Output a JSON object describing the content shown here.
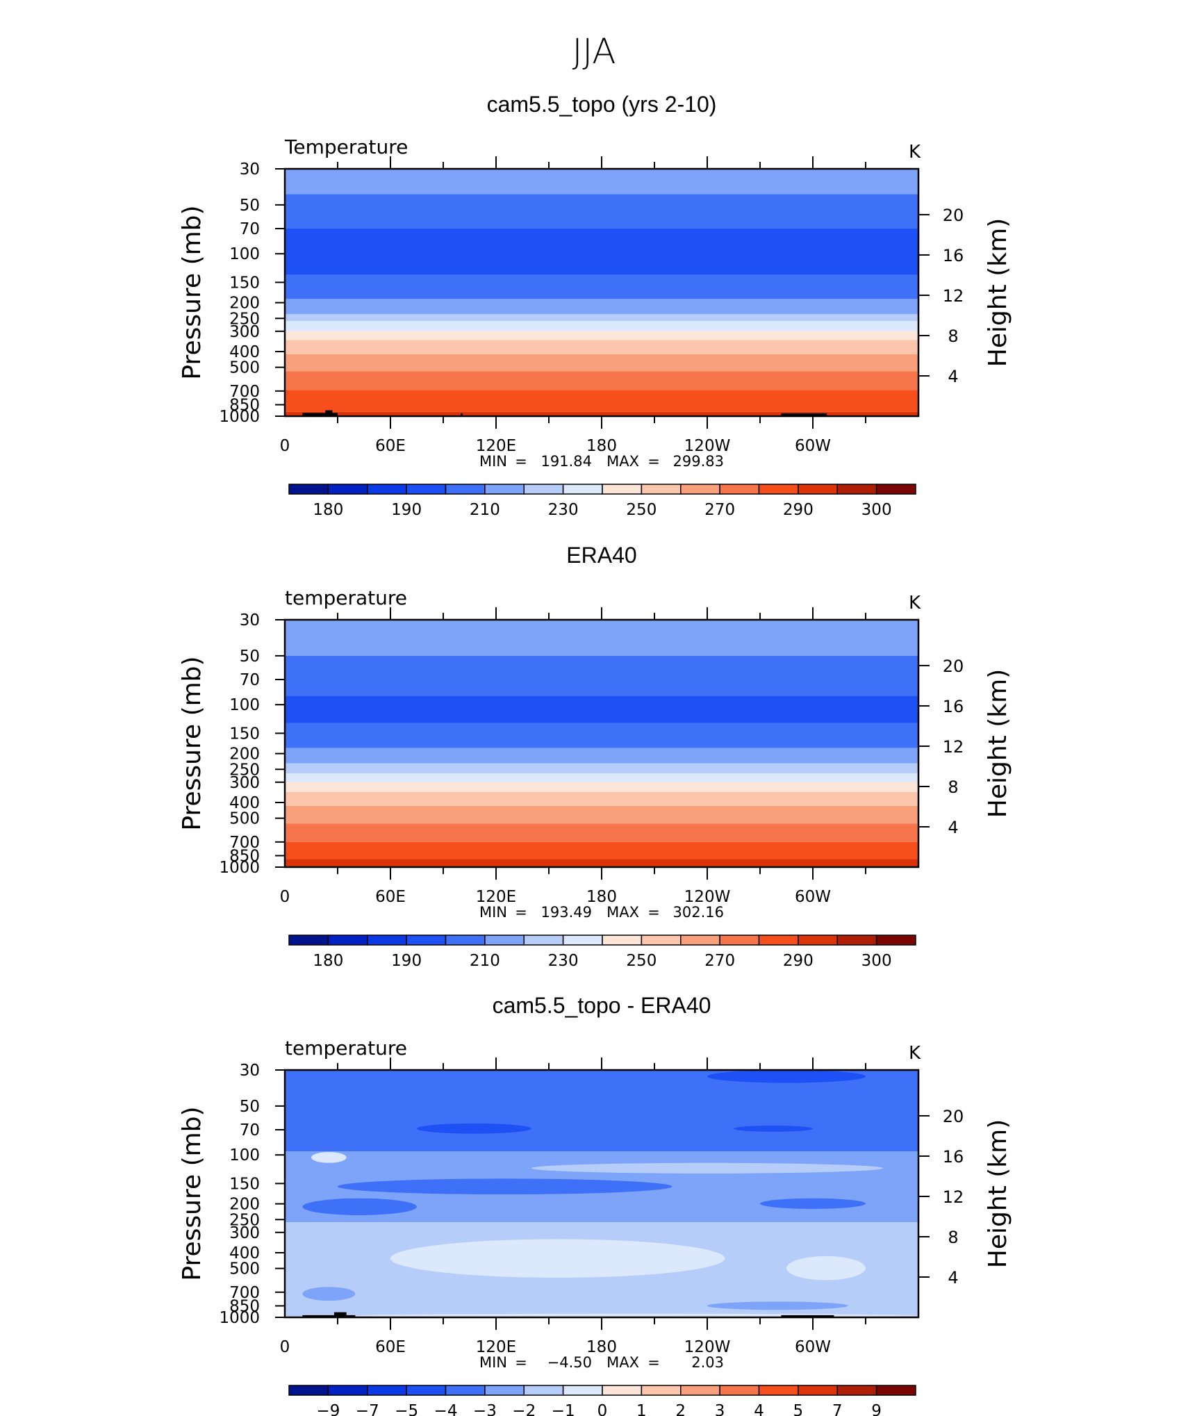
{
  "figure": {
    "title": "JJA"
  },
  "chart_data": [
    {
      "type": "heatmap",
      "title": "cam5.5_topo (yrs 2-10)",
      "left_label": "Temperature",
      "units": "K",
      "ylabel": "Pressure (mb)",
      "y2label": "Height (km)",
      "x_ticks": [
        "0",
        "60E",
        "120E",
        "180",
        "120W",
        "60W"
      ],
      "x_tick_lon": [
        0,
        60,
        120,
        180,
        240,
        300
      ],
      "xlim": [
        0,
        360
      ],
      "y_ticks": [
        "30",
        "50",
        "70",
        "100",
        "150",
        "200",
        "250",
        "300",
        "400",
        "500",
        "700",
        "850",
        "1000"
      ],
      "y_tick_values": [
        30,
        50,
        70,
        100,
        150,
        200,
        250,
        300,
        400,
        500,
        700,
        850,
        1000
      ],
      "ylim": [
        30,
        1000
      ],
      "y_scale": "log",
      "y2_ticks": [
        "20",
        "16",
        "12",
        "8",
        "4"
      ],
      "y2_tick_values": [
        20,
        16,
        12,
        8,
        4
      ],
      "stats": {
        "min_label": "MIN",
        "min": "191.84",
        "max_label": "MAX",
        "max": "299.83"
      },
      "legend": {
        "labels": [
          "180",
          "190",
          "210",
          "230",
          "250",
          "270",
          "290",
          "300"
        ],
        "colors": [
          "#00138F",
          "#0022C4",
          "#0A3AE6",
          "#1D50F5",
          "#3E70F8",
          "#7EA4F9",
          "#B7CDF9",
          "#DCE8FB",
          "#FDE6D8",
          "#FBC6AB",
          "#F89F7C",
          "#F7754A",
          "#F74F1C",
          "#DC3408",
          "#AE1E04",
          "#7A0501"
        ]
      },
      "field_bands": [
        {
          "p": [
            30,
            43
          ],
          "color": "#7EA4F9"
        },
        {
          "p": [
            43,
            70
          ],
          "color": "#3E70F8"
        },
        {
          "p": [
            70,
            135
          ],
          "color": "#1D50F5"
        },
        {
          "p": [
            135,
            190
          ],
          "color": "#3E70F8"
        },
        {
          "p": [
            190,
            235
          ],
          "color": "#7EA4F9"
        },
        {
          "p": [
            235,
            260
          ],
          "color": "#B7CDF9"
        },
        {
          "p": [
            260,
            300
          ],
          "color": "#DCE8FB"
        },
        {
          "p": [
            300,
            340
          ],
          "color": "#FDE6D8"
        },
        {
          "p": [
            340,
            415
          ],
          "color": "#FBC6AB"
        },
        {
          "p": [
            415,
            530
          ],
          "color": "#F89F7C"
        },
        {
          "p": [
            530,
            690
          ],
          "color": "#F7754A"
        },
        {
          "p": [
            690,
            940
          ],
          "color": "#F74F1C"
        },
        {
          "p": [
            940,
            1000
          ],
          "color": "#DC3408"
        }
      ],
      "topography": [
        {
          "lon": [
            10,
            30
          ],
          "p": [
            955,
            1000
          ]
        },
        {
          "lon": [
            23,
            27
          ],
          "p": [
            920,
            1000
          ]
        },
        {
          "lon": [
            100,
            101
          ],
          "p": [
            960,
            1000
          ]
        },
        {
          "lon": [
            282,
            308
          ],
          "p": [
            960,
            1000
          ]
        }
      ]
    },
    {
      "type": "heatmap",
      "title": "ERA40",
      "left_label": "temperature",
      "units": "K",
      "ylabel": "Pressure (mb)",
      "y2label": "Height (km)",
      "x_ticks": [
        "0",
        "60E",
        "120E",
        "180",
        "120W",
        "60W"
      ],
      "x_tick_lon": [
        0,
        60,
        120,
        180,
        240,
        300
      ],
      "xlim": [
        0,
        360
      ],
      "y_ticks": [
        "30",
        "50",
        "70",
        "100",
        "150",
        "200",
        "250",
        "300",
        "400",
        "500",
        "700",
        "850",
        "1000"
      ],
      "y_tick_values": [
        30,
        50,
        70,
        100,
        150,
        200,
        250,
        300,
        400,
        500,
        700,
        850,
        1000
      ],
      "ylim": [
        30,
        1000
      ],
      "y_scale": "log",
      "y2_ticks": [
        "20",
        "16",
        "12",
        "8",
        "4"
      ],
      "y2_tick_values": [
        20,
        16,
        12,
        8,
        4
      ],
      "stats": {
        "min_label": "MIN",
        "min": "193.49",
        "max_label": "MAX",
        "max": "302.16"
      },
      "legend": {
        "labels": [
          "180",
          "190",
          "210",
          "230",
          "250",
          "270",
          "290",
          "300"
        ],
        "colors": [
          "#00138F",
          "#0022C4",
          "#0A3AE6",
          "#1D50F5",
          "#3E70F8",
          "#7EA4F9",
          "#B7CDF9",
          "#DCE8FB",
          "#FDE6D8",
          "#FBC6AB",
          "#F89F7C",
          "#F7754A",
          "#F74F1C",
          "#DC3408",
          "#AE1E04",
          "#7A0501"
        ]
      },
      "field_bands": [
        {
          "p": [
            30,
            50
          ],
          "color": "#7EA4F9"
        },
        {
          "p": [
            50,
            88
          ],
          "color": "#3E70F8"
        },
        {
          "p": [
            88,
            130
          ],
          "color": "#1D50F5"
        },
        {
          "p": [
            130,
            185
          ],
          "color": "#3E70F8"
        },
        {
          "p": [
            185,
            230
          ],
          "color": "#7EA4F9"
        },
        {
          "p": [
            230,
            265
          ],
          "color": "#B7CDF9"
        },
        {
          "p": [
            265,
            300
          ],
          "color": "#DCE8FB"
        },
        {
          "p": [
            300,
            345
          ],
          "color": "#FDE6D8"
        },
        {
          "p": [
            345,
            420
          ],
          "color": "#FBC6AB"
        },
        {
          "p": [
            420,
            540
          ],
          "color": "#F89F7C"
        },
        {
          "p": [
            540,
            700
          ],
          "color": "#F7754A"
        },
        {
          "p": [
            700,
            890
          ],
          "color": "#F74F1C"
        },
        {
          "p": [
            890,
            1000
          ],
          "color": "#DC3408"
        }
      ],
      "topography": []
    },
    {
      "type": "heatmap",
      "title": "cam5.5_topo - ERA40",
      "left_label": "temperature",
      "units": "K",
      "ylabel": "Pressure (mb)",
      "y2label": "Height (km)",
      "x_ticks": [
        "0",
        "60E",
        "120E",
        "180",
        "120W",
        "60W"
      ],
      "x_tick_lon": [
        0,
        60,
        120,
        180,
        240,
        300
      ],
      "xlim": [
        0,
        360
      ],
      "y_ticks": [
        "30",
        "50",
        "70",
        "100",
        "150",
        "200",
        "250",
        "300",
        "400",
        "500",
        "700",
        "850",
        "1000"
      ],
      "y_tick_values": [
        30,
        50,
        70,
        100,
        150,
        200,
        250,
        300,
        400,
        500,
        700,
        850,
        1000
      ],
      "ylim": [
        30,
        1000
      ],
      "y_scale": "log",
      "y2_ticks": [
        "20",
        "16",
        "12",
        "8",
        "4"
      ],
      "y2_tick_values": [
        20,
        16,
        12,
        8,
        4
      ],
      "stats": {
        "min_label": "MIN",
        "min": "−4.50",
        "max_label": "MAX",
        "max": "2.03"
      },
      "legend": {
        "labels": [
          "−9",
          "−7",
          "−5",
          "−4",
          "−3",
          "−2",
          "−1",
          "0",
          "1",
          "2",
          "3",
          "4",
          "5",
          "7",
          "9"
        ],
        "colors": [
          "#00138F",
          "#0022C4",
          "#0A3AE6",
          "#1D50F5",
          "#3E70F8",
          "#7EA4F9",
          "#B7CDF9",
          "#DCE8FB",
          "#FDE6D8",
          "#FBC6AB",
          "#F89F7C",
          "#F7754A",
          "#F74F1C",
          "#DC3408",
          "#AE1E04",
          "#7A0501"
        ]
      },
      "field_bands": [
        {
          "p": [
            30,
            95
          ],
          "color": "#3E70F8"
        },
        {
          "p": [
            95,
            260
          ],
          "color": "#7EA4F9"
        },
        {
          "p": [
            260,
            1000
          ],
          "color": "#B7CDF9"
        }
      ],
      "field_patches": [
        {
          "lon": [
            240,
            330
          ],
          "p": [
            30,
            36
          ],
          "color": "#1D50F5"
        },
        {
          "lon": [
            75,
            140
          ],
          "p": [
            64,
            74
          ],
          "color": "#1D50F5"
        },
        {
          "lon": [
            255,
            300
          ],
          "p": [
            66,
            72
          ],
          "color": "#1D50F5"
        },
        {
          "lon": [
            15,
            35
          ],
          "p": [
            96,
            112
          ],
          "color": "#DCE8FB"
        },
        {
          "lon": [
            140,
            340
          ],
          "p": [
            112,
            130
          ],
          "color": "#B7CDF9"
        },
        {
          "lon": [
            30,
            220
          ],
          "p": [
            140,
            175
          ],
          "color": "#3E70F8"
        },
        {
          "lon": [
            10,
            75
          ],
          "p": [
            185,
            235
          ],
          "color": "#3E70F8"
        },
        {
          "lon": [
            270,
            330
          ],
          "p": [
            185,
            215
          ],
          "color": "#3E70F8"
        },
        {
          "lon": [
            60,
            250
          ],
          "p": [
            330,
            570
          ],
          "color": "#DCE8FB"
        },
        {
          "lon": [
            285,
            330
          ],
          "p": [
            420,
            590
          ],
          "color": "#DCE8FB"
        },
        {
          "lon": [
            10,
            40
          ],
          "p": [
            650,
            790
          ],
          "color": "#7EA4F9"
        },
        {
          "lon": [
            240,
            320
          ],
          "p": [
            800,
            900
          ],
          "color": "#7EA4F9"
        },
        {
          "lon": [
            40,
            360
          ],
          "p": [
            950,
            1000
          ],
          "color": "#DCE8FB"
        }
      ],
      "topography": [
        {
          "lon": [
            10,
            40
          ],
          "p": [
            970,
            1000
          ]
        },
        {
          "lon": [
            28,
            35
          ],
          "p": [
            930,
            1000
          ]
        },
        {
          "lon": [
            282,
            312
          ],
          "p": [
            970,
            1000
          ]
        }
      ]
    }
  ]
}
